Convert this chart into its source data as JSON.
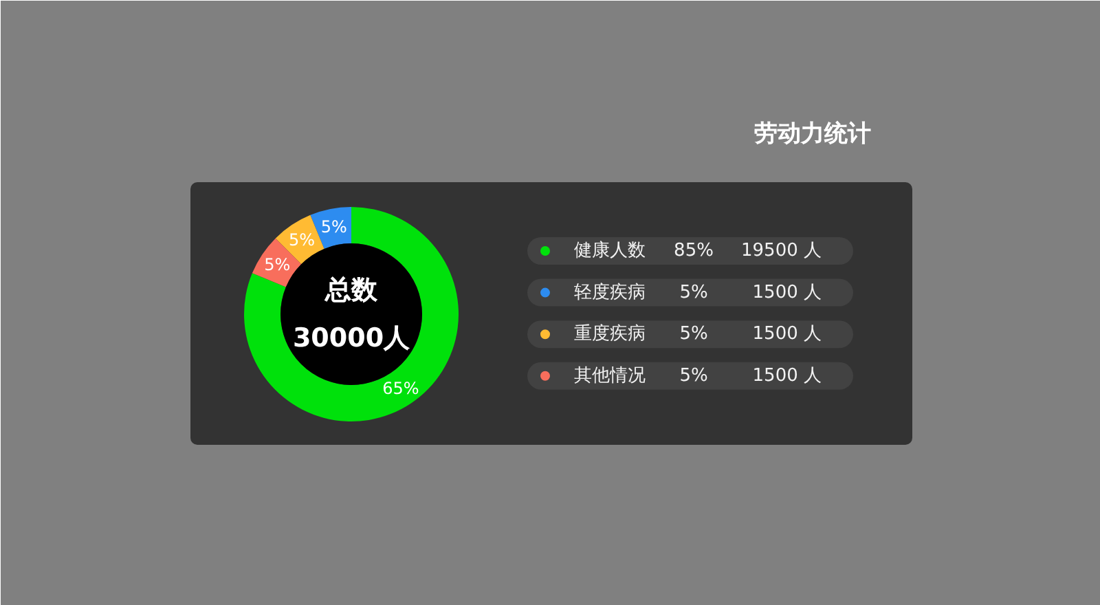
{
  "chart_data": {
    "type": "donut",
    "title": "劳动力统计",
    "categories": [
      "健康人数",
      "轻度疾病",
      "重度疾病",
      "其他情况"
    ],
    "values": [
      65,
      5,
      5,
      5
    ],
    "colors": [
      "#00e10b",
      "#2d8cf0",
      "#ffbb33",
      "#f86e5c"
    ],
    "value_labels": [
      "65%",
      "5%",
      "5%",
      "5%"
    ],
    "legend": "right",
    "annotations": [
      "总数",
      "30000人",
      "85%",
      "19500 人",
      "5%",
      "1500 人",
      "5%",
      "1500 人",
      "5%",
      "1500 人"
    ]
  }
}
